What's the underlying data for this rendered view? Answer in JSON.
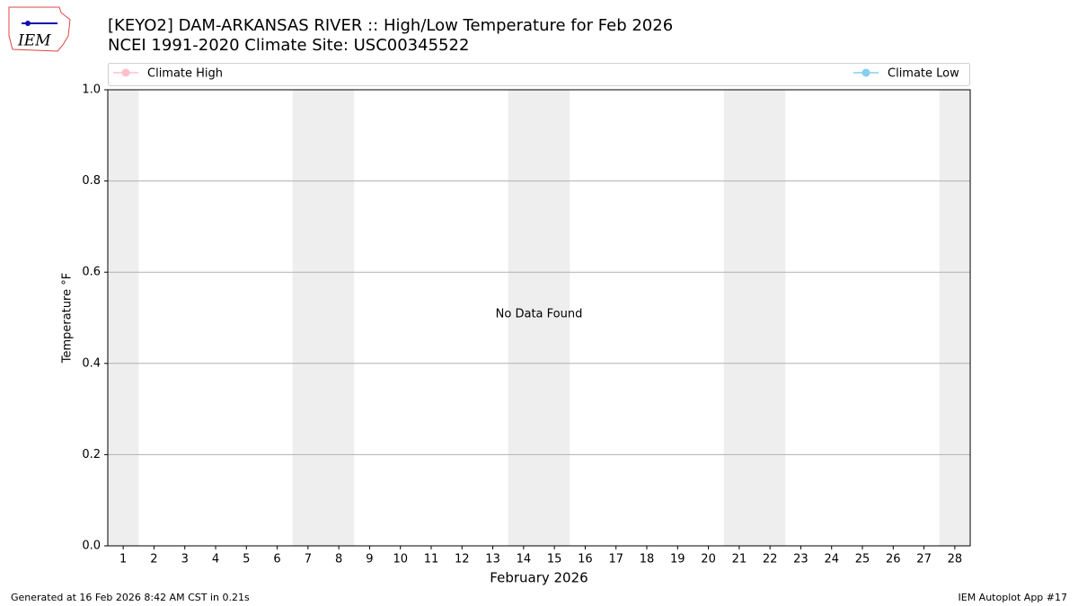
{
  "logo_text": "IEM",
  "footer_left": "Generated at 16 Feb 2026 8:42 AM CST in 0.21s",
  "footer_right": "IEM Autoplot App #17",
  "chart_data": {
    "type": "line",
    "title": "[KEYO2] DAM-ARKANSAS RIVER :: High/Low Temperature for Feb 2026",
    "subtitle": "NCEI 1991-2020 Climate Site: USC00345522",
    "x_label": "February 2026",
    "y_label": "Temperature °F",
    "annotation": "No Data Found",
    "x": [
      1,
      2,
      3,
      4,
      5,
      6,
      7,
      8,
      9,
      10,
      11,
      12,
      13,
      14,
      15,
      16,
      17,
      18,
      19,
      20,
      21,
      22,
      23,
      24,
      25,
      26,
      27,
      28
    ],
    "series": [
      {
        "name": "Climate High",
        "color": "#ffc0cb",
        "values": [
          null,
          null,
          null,
          null,
          null,
          null,
          null,
          null,
          null,
          null,
          null,
          null,
          null,
          null,
          null,
          null,
          null,
          null,
          null,
          null,
          null,
          null,
          null,
          null,
          null,
          null,
          null,
          null
        ]
      },
      {
        "name": "Climate Low",
        "color": "#87ceeb",
        "values": [
          null,
          null,
          null,
          null,
          null,
          null,
          null,
          null,
          null,
          null,
          null,
          null,
          null,
          null,
          null,
          null,
          null,
          null,
          null,
          null,
          null,
          null,
          null,
          null,
          null,
          null,
          null,
          null
        ]
      }
    ],
    "shaded_x": [
      1,
      7,
      8,
      14,
      15,
      21,
      22,
      28
    ],
    "shade_color": "#eeeeee",
    "xlim": [
      0.5,
      28.5
    ],
    "xticks": [
      1,
      2,
      3,
      4,
      5,
      6,
      7,
      8,
      9,
      10,
      11,
      12,
      13,
      14,
      15,
      16,
      17,
      18,
      19,
      20,
      21,
      22,
      23,
      24,
      25,
      26,
      27,
      28
    ],
    "ylim": [
      0,
      1
    ],
    "yticks": [
      {
        "value": 0,
        "label": "0.0"
      },
      0.2,
      0.4,
      0.6,
      0.8,
      {
        "value": 1,
        "label": "1.0"
      }
    ],
    "grid": true
  }
}
